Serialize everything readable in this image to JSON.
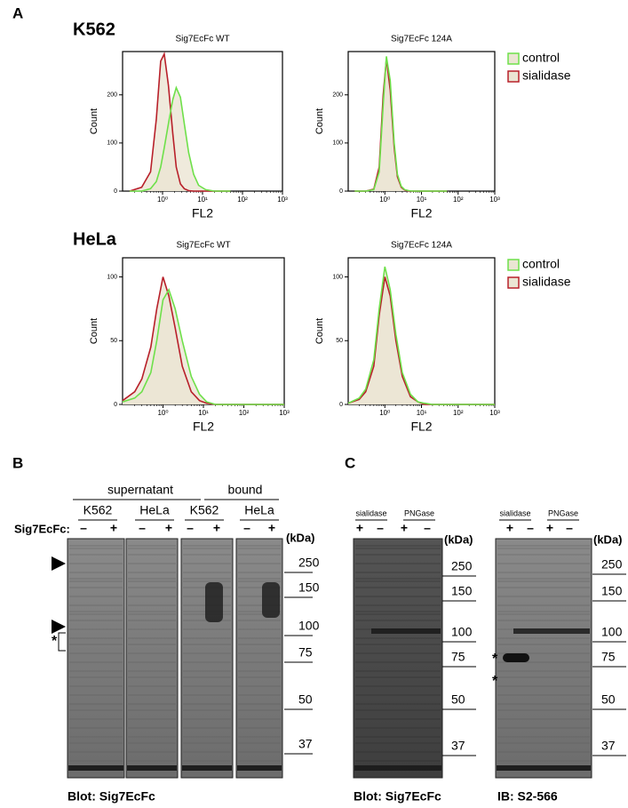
{
  "panel_labels": {
    "a": "A",
    "b": "B",
    "c": "C"
  },
  "cell_lines": [
    "K562",
    "HeLa"
  ],
  "chart_data": [
    {
      "type": "line",
      "title": "Sig7EcFc WT",
      "x_label": "FL2",
      "y_label": "Count",
      "x_scale": "log",
      "xlim": [
        0.1,
        1000
      ],
      "xticks": [
        {
          "value": 1,
          "label": "10⁰"
        },
        {
          "value": 10,
          "label": "10¹"
        },
        {
          "value": 100,
          "label": "10²"
        },
        {
          "value": 1000,
          "label": "10³"
        }
      ],
      "ylim": [
        0,
        290
      ],
      "yticks": [
        0,
        100,
        200
      ],
      "fill_color": "#ebe5d3",
      "x": [
        0.15,
        0.3,
        0.5,
        0.7,
        0.9,
        1.1,
        1.4,
        1.8,
        2.2,
        2.8,
        3.5,
        4.5,
        6,
        8,
        12,
        20,
        50
      ],
      "series": [
        {
          "name": "control",
          "color": "#6ee04a",
          "values": [
            0,
            0,
            5,
            20,
            50,
            90,
            140,
            190,
            215,
            195,
            140,
            80,
            35,
            12,
            3,
            0,
            0
          ]
        },
        {
          "name": "sialidase",
          "color": "#b8202a",
          "values": [
            0,
            8,
            40,
            150,
            270,
            285,
            220,
            120,
            50,
            15,
            5,
            1,
            0,
            0,
            0,
            0,
            0
          ]
        }
      ]
    },
    {
      "type": "line",
      "title": "Sig7EcFc 124A",
      "x_label": "FL2",
      "y_label": "Count",
      "x_scale": "log",
      "xlim": [
        0.1,
        1000
      ],
      "xticks": [
        {
          "value": 1,
          "label": "10⁰"
        },
        {
          "value": 10,
          "label": "10¹"
        },
        {
          "value": 100,
          "label": "10²"
        },
        {
          "value": 1000,
          "label": "10³"
        }
      ],
      "ylim": [
        0,
        290
      ],
      "yticks": [
        0,
        100,
        200
      ],
      "fill_color": "#ebe5d3",
      "legend": "right",
      "x": [
        0.15,
        0.3,
        0.5,
        0.7,
        0.9,
        1.1,
        1.4,
        1.8,
        2.2,
        2.8,
        3.5,
        4.5,
        6,
        8,
        12,
        20,
        50
      ],
      "series": [
        {
          "name": "control",
          "color": "#6ee04a",
          "values": [
            0,
            0,
            3,
            40,
            180,
            280,
            230,
            100,
            35,
            10,
            3,
            1,
            0,
            0,
            0,
            0,
            0
          ]
        },
        {
          "name": "sialidase",
          "color": "#b8202a",
          "values": [
            0,
            0,
            4,
            50,
            200,
            275,
            210,
            90,
            30,
            8,
            2,
            0,
            0,
            0,
            0,
            0,
            0
          ]
        }
      ]
    },
    {
      "type": "line",
      "title": "Sig7EcFc WT",
      "x_label": "FL2",
      "y_label": "Count",
      "x_scale": "log",
      "xlim": [
        0.1,
        1000
      ],
      "xticks": [
        {
          "value": 1,
          "label": "10⁰"
        },
        {
          "value": 10,
          "label": "10¹"
        },
        {
          "value": 100,
          "label": "10²"
        },
        {
          "value": 1000,
          "label": "10³"
        }
      ],
      "ylim": [
        0,
        115
      ],
      "yticks": [
        0,
        50,
        100
      ],
      "fill_color": "#ebe5d3",
      "x": [
        0.1,
        0.2,
        0.3,
        0.5,
        0.7,
        1,
        1.4,
        2,
        3,
        5,
        8,
        12,
        20,
        50,
        1000
      ],
      "series": [
        {
          "name": "control",
          "color": "#6ee04a",
          "values": [
            2,
            5,
            10,
            25,
            50,
            82,
            90,
            75,
            50,
            22,
            8,
            2,
            0,
            0,
            0
          ]
        },
        {
          "name": "sialidase",
          "color": "#b8202a",
          "values": [
            3,
            10,
            20,
            45,
            75,
            100,
            85,
            60,
            30,
            10,
            3,
            1,
            0,
            0,
            0
          ]
        }
      ]
    },
    {
      "type": "line",
      "title": "Sig7EcFc 124A",
      "x_label": "FL2",
      "y_label": "Count",
      "x_scale": "log",
      "xlim": [
        0.1,
        1000
      ],
      "xticks": [
        {
          "value": 1,
          "label": "10⁰"
        },
        {
          "value": 10,
          "label": "10¹"
        },
        {
          "value": 100,
          "label": "10²"
        },
        {
          "value": 1000,
          "label": "10³"
        }
      ],
      "ylim": [
        0,
        115
      ],
      "yticks": [
        0,
        50,
        100
      ],
      "fill_color": "#ebe5d3",
      "legend": "right",
      "x": [
        0.1,
        0.2,
        0.3,
        0.5,
        0.7,
        1,
        1.4,
        2,
        3,
        5,
        8,
        12,
        20,
        50,
        1000
      ],
      "series": [
        {
          "name": "control",
          "color": "#6ee04a",
          "values": [
            1,
            5,
            12,
            35,
            75,
            108,
            90,
            55,
            25,
            8,
            2,
            1,
            0,
            0,
            0
          ]
        },
        {
          "name": "sialidase",
          "color": "#b8202a",
          "values": [
            1,
            4,
            10,
            30,
            70,
            100,
            85,
            50,
            22,
            6,
            2,
            0,
            0,
            0,
            0
          ]
        }
      ]
    }
  ],
  "blot_b": {
    "groups": [
      "supernatant",
      "bound"
    ],
    "lanes": [
      "K562",
      "HeLa",
      "K562",
      "HeLa"
    ],
    "treatment_label": "Sig7EcFc:",
    "signs": [
      "–",
      "+",
      "–",
      "+",
      "–",
      "+",
      "–",
      "+"
    ],
    "unit": "(kDa)",
    "markers": [
      250,
      150,
      100,
      75,
      50,
      37
    ],
    "asterisk": "*",
    "caption": "Blot: Sig7EcFc"
  },
  "blot_c": [
    {
      "treatments": [
        "sialidase",
        "PNGase"
      ],
      "signs": [
        "+",
        "–",
        "+",
        "–"
      ],
      "unit": "(kDa)",
      "markers": [
        250,
        150,
        100,
        75,
        50,
        37
      ],
      "caption": "Blot: Sig7EcFc"
    },
    {
      "treatments": [
        "sialidase",
        "PNGase"
      ],
      "signs": [
        "+",
        "–",
        "+",
        "–"
      ],
      "unit": "(kDa)",
      "markers": [
        250,
        150,
        100,
        75,
        50,
        37
      ],
      "asterisks": [
        "*",
        "*"
      ],
      "caption": "IB: S2-566"
    }
  ]
}
